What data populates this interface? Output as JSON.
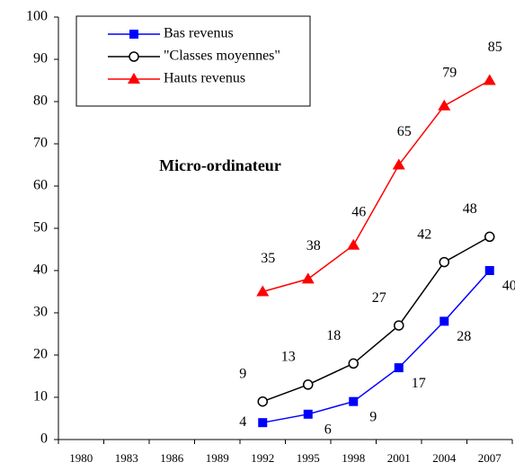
{
  "chart_data": {
    "type": "line",
    "annotation": "Micro-ordinateur",
    "categories": [
      "1980",
      "1983",
      "1986",
      "1989",
      "1992",
      "1995",
      "1998",
      "2001",
      "2004",
      "2007"
    ],
    "series": [
      {
        "name": "Bas revenus",
        "color": "#0000ff",
        "marker": "square",
        "values": [
          null,
          null,
          null,
          null,
          4,
          6,
          9,
          17,
          28,
          40
        ]
      },
      {
        "name": "\"Classes moyennes\"",
        "color": "#000000",
        "marker": "circle",
        "values": [
          null,
          null,
          null,
          null,
          9,
          13,
          18,
          27,
          42,
          48
        ]
      },
      {
        "name": "Hauts revenus",
        "color": "#ff0000",
        "marker": "triangle",
        "values": [
          null,
          null,
          null,
          null,
          35,
          38,
          46,
          65,
          79,
          85
        ]
      }
    ],
    "ylim": [
      0,
      100
    ],
    "yticks": [
      0,
      10,
      20,
      30,
      40,
      50,
      60,
      70,
      80,
      90,
      100
    ],
    "grid": false,
    "legend": "top-left"
  }
}
